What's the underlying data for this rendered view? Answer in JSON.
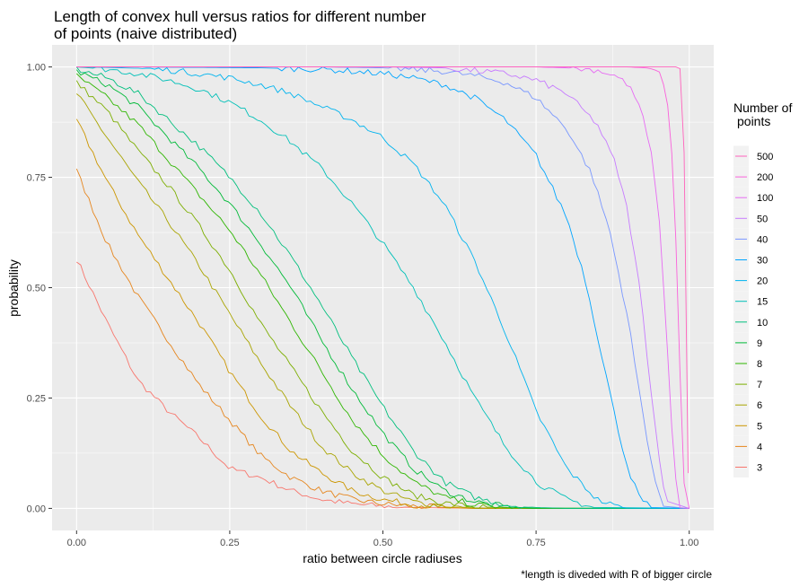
{
  "chart_data": {
    "type": "line",
    "title_lines": [
      "Length of convex hull versus ratios for different number",
      "of points (naive distributed)"
    ],
    "xlabel": "ratio between circle radiuses",
    "ylabel": "probability",
    "caption": "*length is diveded with R of bigger circle",
    "xlim": [
      -0.04,
      1.04
    ],
    "ylim": [
      -0.05,
      1.05
    ],
    "x_ticks": [
      0,
      0.25,
      0.5,
      0.75,
      1
    ],
    "x_tick_labels": [
      "0.00",
      "0.25",
      "0.50",
      "0.75",
      "1.00"
    ],
    "y_ticks": [
      0,
      0.25,
      0.5,
      0.75,
      1
    ],
    "y_tick_labels": [
      "0.00",
      "0.25",
      "0.50",
      "0.75",
      "1.00"
    ],
    "grid": true,
    "legend": {
      "title_lines": [
        "Number of",
        "points"
      ],
      "placement": "right",
      "order": [
        "500",
        "200",
        "100",
        "50",
        "40",
        "30",
        "20",
        "15",
        "10",
        "9",
        "8",
        "7",
        "6",
        "5",
        "4",
        "3"
      ]
    },
    "series": [
      {
        "name": "3",
        "color": "#F8766D",
        "x": [
          0,
          0.05,
          0.1,
          0.15,
          0.2,
          0.25,
          0.3,
          0.35,
          0.4,
          0.45,
          0.5,
          0.55,
          0.6,
          0.65,
          0.7
        ],
        "y": [
          0.565,
          0.42,
          0.29,
          0.22,
          0.16,
          0.09,
          0.07,
          0.04,
          0.02,
          0.01,
          0.005,
          0.002,
          0.001,
          0,
          0
        ]
      },
      {
        "name": "4",
        "color": "#E6861E",
        "x": [
          0,
          0.05,
          0.1,
          0.15,
          0.2,
          0.25,
          0.3,
          0.35,
          0.4,
          0.45,
          0.5,
          0.55,
          0.6,
          0.65,
          0.7
        ],
        "y": [
          0.765,
          0.6,
          0.48,
          0.38,
          0.28,
          0.2,
          0.12,
          0.07,
          0.04,
          0.02,
          0.01,
          0.005,
          0.002,
          0,
          0
        ]
      },
      {
        "name": "5",
        "color": "#CC9600",
        "x": [
          0,
          0.05,
          0.1,
          0.15,
          0.2,
          0.25,
          0.3,
          0.35,
          0.4,
          0.45,
          0.5,
          0.55,
          0.6,
          0.65,
          0.7
        ],
        "y": [
          0.88,
          0.74,
          0.62,
          0.52,
          0.42,
          0.31,
          0.21,
          0.13,
          0.08,
          0.04,
          0.02,
          0.008,
          0.003,
          0,
          0
        ]
      },
      {
        "name": "6",
        "color": "#A9A400",
        "x": [
          0,
          0.05,
          0.1,
          0.15,
          0.2,
          0.25,
          0.3,
          0.35,
          0.4,
          0.45,
          0.5,
          0.55,
          0.6,
          0.65,
          0.7
        ],
        "y": [
          0.94,
          0.84,
          0.74,
          0.65,
          0.55,
          0.44,
          0.33,
          0.23,
          0.14,
          0.08,
          0.04,
          0.015,
          0.005,
          0.001,
          0
        ]
      },
      {
        "name": "7",
        "color": "#7CAE00",
        "x": [
          0,
          0.05,
          0.1,
          0.15,
          0.2,
          0.25,
          0.3,
          0.35,
          0.4,
          0.45,
          0.5,
          0.55,
          0.6,
          0.65,
          0.7,
          0.75
        ],
        "y": [
          0.965,
          0.9,
          0.81,
          0.73,
          0.64,
          0.54,
          0.42,
          0.32,
          0.22,
          0.13,
          0.07,
          0.03,
          0.012,
          0.004,
          0.001,
          0
        ]
      },
      {
        "name": "8",
        "color": "#2EB600",
        "x": [
          0,
          0.05,
          0.1,
          0.15,
          0.2,
          0.25,
          0.3,
          0.35,
          0.4,
          0.45,
          0.5,
          0.55,
          0.6,
          0.65,
          0.7,
          0.75
        ],
        "y": [
          0.98,
          0.93,
          0.87,
          0.79,
          0.71,
          0.63,
          0.53,
          0.42,
          0.31,
          0.2,
          0.12,
          0.06,
          0.025,
          0.008,
          0.002,
          0
        ]
      },
      {
        "name": "9",
        "color": "#00BA38",
        "x": [
          0,
          0.05,
          0.1,
          0.15,
          0.2,
          0.25,
          0.3,
          0.35,
          0.4,
          0.45,
          0.5,
          0.55,
          0.6,
          0.65,
          0.7,
          0.75
        ],
        "y": [
          0.99,
          0.96,
          0.91,
          0.84,
          0.77,
          0.69,
          0.6,
          0.5,
          0.38,
          0.27,
          0.17,
          0.09,
          0.04,
          0.015,
          0.004,
          0
        ]
      },
      {
        "name": "10",
        "color": "#00BF7D",
        "x": [
          0,
          0.05,
          0.1,
          0.15,
          0.2,
          0.25,
          0.3,
          0.35,
          0.4,
          0.45,
          0.5,
          0.55,
          0.6,
          0.65,
          0.7,
          0.75,
          0.8
        ],
        "y": [
          0.995,
          0.975,
          0.94,
          0.88,
          0.82,
          0.75,
          0.67,
          0.57,
          0.46,
          0.34,
          0.23,
          0.13,
          0.06,
          0.025,
          0.008,
          0.002,
          0
        ]
      },
      {
        "name": "15",
        "color": "#00C0B8",
        "x": [
          0,
          0.05,
          0.1,
          0.15,
          0.2,
          0.25,
          0.3,
          0.35,
          0.4,
          0.45,
          0.5,
          0.55,
          0.6,
          0.65,
          0.7,
          0.75,
          0.8,
          0.85
        ],
        "y": [
          1.0,
          0.995,
          0.985,
          0.97,
          0.95,
          0.92,
          0.88,
          0.83,
          0.77,
          0.69,
          0.6,
          0.5,
          0.38,
          0.25,
          0.14,
          0.06,
          0.02,
          0
        ]
      },
      {
        "name": "20",
        "color": "#00B4EF",
        "x": [
          0,
          0.05,
          0.1,
          0.15,
          0.2,
          0.25,
          0.3,
          0.35,
          0.4,
          0.45,
          0.5,
          0.55,
          0.6,
          0.65,
          0.7,
          0.75,
          0.8,
          0.85,
          0.88,
          0.9
        ],
        "y": [
          1.0,
          0.999,
          0.997,
          0.993,
          0.985,
          0.975,
          0.96,
          0.94,
          0.91,
          0.88,
          0.84,
          0.78,
          0.69,
          0.56,
          0.4,
          0.22,
          0.09,
          0.02,
          0.005,
          0
        ]
      },
      {
        "name": "30",
        "color": "#00A5FF",
        "x": [
          0,
          0.1,
          0.2,
          0.3,
          0.4,
          0.5,
          0.55,
          0.6,
          0.65,
          0.7,
          0.75,
          0.8,
          0.83,
          0.86,
          0.88,
          0.9,
          0.92,
          0.94
        ],
        "y": [
          1.0,
          1.0,
          0.999,
          0.998,
          0.995,
          0.985,
          0.975,
          0.96,
          0.93,
          0.88,
          0.8,
          0.66,
          0.52,
          0.33,
          0.2,
          0.09,
          0.02,
          0
        ]
      },
      {
        "name": "40",
        "color": "#7997FF",
        "x": [
          0,
          0.2,
          0.4,
          0.5,
          0.6,
          0.65,
          0.7,
          0.75,
          0.8,
          0.84,
          0.87,
          0.9,
          0.92,
          0.94,
          0.95,
          0.96
        ],
        "y": [
          1.0,
          1.0,
          1.0,
          0.998,
          0.99,
          0.98,
          0.965,
          0.93,
          0.86,
          0.76,
          0.63,
          0.43,
          0.25,
          0.09,
          0.03,
          0
        ]
      },
      {
        "name": "50",
        "color": "#C77CFF",
        "x": [
          0,
          0.2,
          0.4,
          0.5,
          0.6,
          0.7,
          0.75,
          0.8,
          0.85,
          0.88,
          0.9,
          0.92,
          0.94,
          0.95,
          0.96,
          0.97
        ],
        "y": [
          1.0,
          1.0,
          1.0,
          1.0,
          0.998,
          0.985,
          0.97,
          0.94,
          0.87,
          0.78,
          0.67,
          0.49,
          0.24,
          0.12,
          0.04,
          0
        ]
      },
      {
        "name": "100",
        "color": "#E76BF3",
        "x": [
          0,
          0.3,
          0.6,
          0.75,
          0.8,
          0.85,
          0.88,
          0.9,
          0.92,
          0.94,
          0.95,
          0.96,
          0.97,
          0.98,
          0.985
        ],
        "y": [
          1.0,
          1.0,
          1.0,
          1.0,
          0.998,
          0.993,
          0.98,
          0.96,
          0.91,
          0.79,
          0.67,
          0.47,
          0.21,
          0.04,
          0
        ]
      },
      {
        "name": "200",
        "color": "#FA62DB",
        "x": [
          0,
          0.3,
          0.6,
          0.8,
          0.9,
          0.93,
          0.95,
          0.96,
          0.97,
          0.98,
          0.985,
          0.99,
          0.995
        ],
        "y": [
          1.0,
          1.0,
          1.0,
          1.0,
          1.0,
          0.998,
          0.99,
          0.96,
          0.85,
          0.55,
          0.3,
          0.08,
          0
        ]
      },
      {
        "name": "500",
        "color": "#FF62BC",
        "x": [
          0,
          0.3,
          0.6,
          0.9,
          0.95,
          0.98,
          0.99,
          0.995,
          0.998,
          1.0
        ],
        "y": [
          1.0,
          1.0,
          1.0,
          1.0,
          1.0,
          1.0,
          0.99,
          0.4,
          0.1,
          0
        ]
      }
    ]
  }
}
